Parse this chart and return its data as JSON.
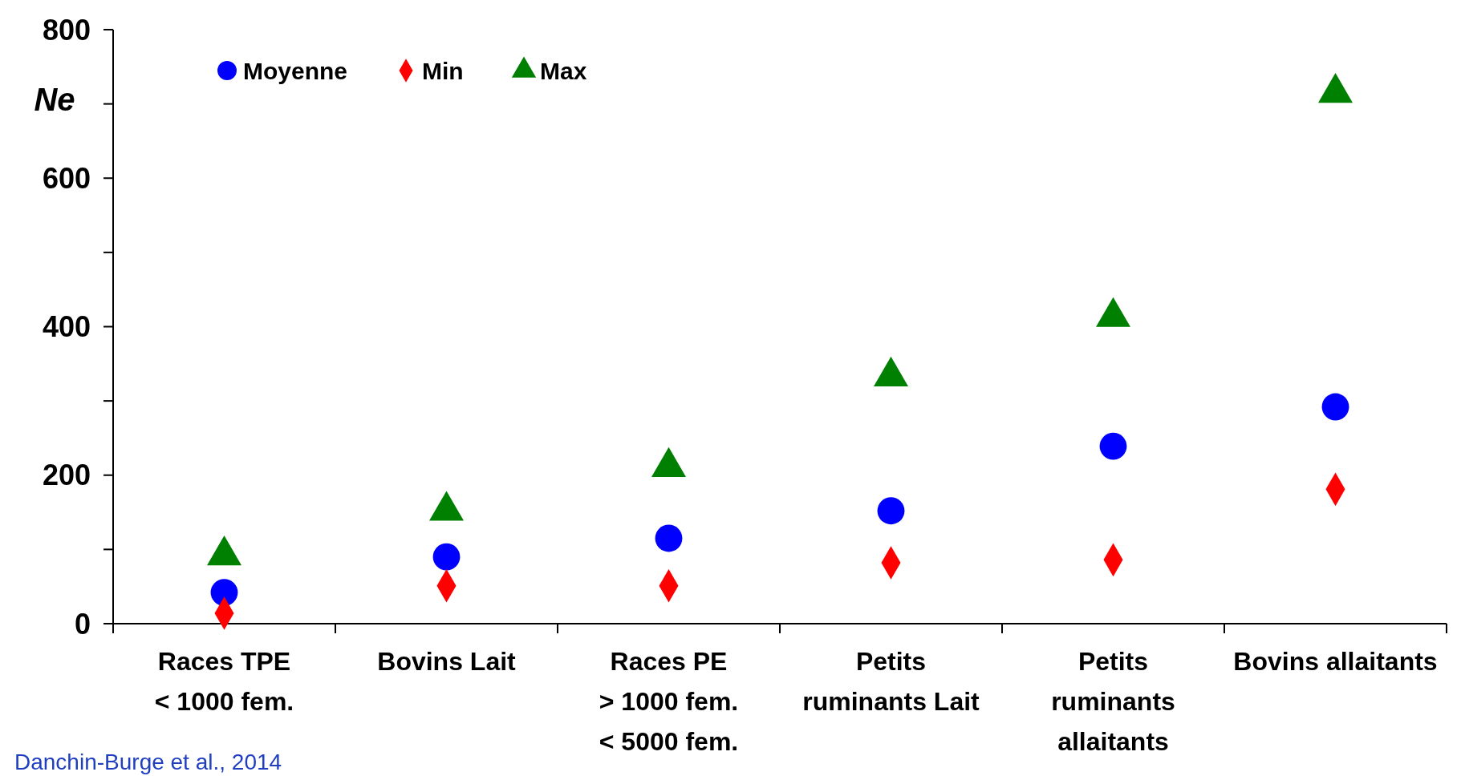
{
  "chart_data": {
    "type": "scatter",
    "ylabel": "Ne",
    "categories": [
      "Races TPE\n< 1000 fem.",
      "Bovins Lait",
      "Races PE\n> 1000 fem.\n< 5000 fem.",
      "Petits\nruminants Lait",
      "Petits\nruminants\nallaitants",
      "Bovins allaitants"
    ],
    "series": [
      {
        "name": "Moyenne",
        "color": "#0000ff",
        "marker": "circle",
        "values": [
          42,
          90,
          115,
          152,
          239,
          292
        ]
      },
      {
        "name": "Min",
        "color": "#ff0000",
        "marker": "diamond",
        "values": [
          14,
          51,
          51,
          82,
          86,
          181
        ]
      },
      {
        "name": "Max",
        "color": "#008000",
        "marker": "triangle",
        "values": [
          92,
          152,
          211,
          333,
          413,
          715
        ]
      }
    ],
    "ylim": [
      0,
      800
    ],
    "yticks": [
      0,
      {
        "value": 100,
        "label": null
      },
      200,
      {
        "value": 300,
        "label": null
      },
      400,
      {
        "value": 500,
        "label": null
      },
      600,
      {
        "value": 700,
        "label": null
      },
      800
    ],
    "legend": "top left",
    "grid": false,
    "annotations": [
      "Danchin-Burge et al., 2014"
    ]
  }
}
